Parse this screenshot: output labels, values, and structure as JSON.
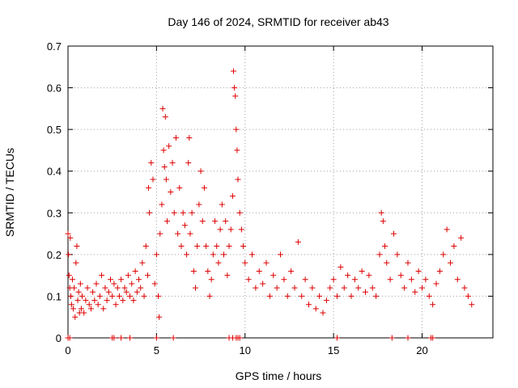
{
  "chart_data": {
    "type": "scatter",
    "title": "Day 146 of 2024, SRMTID for receiver ab43",
    "xlabel": "GPS time / hours",
    "ylabel": "SRMTID / TECUs",
    "xlim": [
      0,
      24
    ],
    "ylim": [
      0,
      0.7
    ],
    "xticks": [
      0,
      5,
      10,
      15,
      20
    ],
    "yticks": [
      0,
      0.1,
      0.2,
      0.3,
      0.4,
      0.5,
      0.6,
      0.7
    ],
    "grid": true,
    "marker": "+",
    "series_color": "#dd0000",
    "series": [
      {
        "name": "SRMTID",
        "points": [
          [
            0.0,
            0.25
          ],
          [
            0.03,
            0.2
          ],
          [
            0.06,
            0.15
          ],
          [
            0.1,
            0.12
          ],
          [
            0.13,
            0.24
          ],
          [
            0.16,
            0.1
          ],
          [
            0.2,
            0.08
          ],
          [
            0.25,
            0.14
          ],
          [
            0.3,
            0.07
          ],
          [
            0.35,
            0.12
          ],
          [
            0.4,
            0.05
          ],
          [
            0.45,
            0.18
          ],
          [
            0.5,
            0.22
          ],
          [
            0.55,
            0.09
          ],
          [
            0.6,
            0.11
          ],
          [
            0.65,
            0.06
          ],
          [
            0.7,
            0.13
          ],
          [
            0.75,
            0.07
          ],
          [
            0.8,
            0.1
          ],
          [
            0.9,
            0.06
          ],
          [
            1.0,
            0.09
          ],
          [
            1.1,
            0.12
          ],
          [
            1.2,
            0.08
          ],
          [
            1.3,
            0.07
          ],
          [
            1.4,
            0.11
          ],
          [
            1.5,
            0.09
          ],
          [
            1.6,
            0.13
          ],
          [
            1.7,
            0.08
          ],
          [
            1.8,
            0.1
          ],
          [
            1.9,
            0.15
          ],
          [
            2.0,
            0.07
          ],
          [
            2.1,
            0.12
          ],
          [
            2.2,
            0.09
          ],
          [
            2.3,
            0.11
          ],
          [
            2.4,
            0.14
          ],
          [
            2.5,
            0.1
          ],
          [
            2.6,
            0.13
          ],
          [
            2.7,
            0.08
          ],
          [
            2.8,
            0.12
          ],
          [
            2.9,
            0.1
          ],
          [
            3.0,
            0.14
          ],
          [
            3.1,
            0.09
          ],
          [
            3.2,
            0.12
          ],
          [
            3.3,
            0.11
          ],
          [
            3.4,
            0.15
          ],
          [
            3.5,
            0.1
          ],
          [
            3.6,
            0.13
          ],
          [
            3.7,
            0.09
          ],
          [
            3.8,
            0.16
          ],
          [
            3.9,
            0.11
          ],
          [
            4.0,
            0.14
          ],
          [
            4.1,
            0.12
          ],
          [
            4.2,
            0.18
          ],
          [
            4.3,
            0.1
          ],
          [
            4.4,
            0.22
          ],
          [
            4.5,
            0.15
          ],
          [
            4.55,
            0.36
          ],
          [
            4.6,
            0.3
          ],
          [
            4.7,
            0.42
          ],
          [
            4.8,
            0.38
          ],
          [
            4.9,
            0.13
          ],
          [
            5.0,
            0.2
          ],
          [
            5.1,
            0.1
          ],
          [
            5.15,
            0.05
          ],
          [
            5.2,
            0.25
          ],
          [
            5.3,
            0.32
          ],
          [
            5.35,
            0.55
          ],
          [
            5.4,
            0.45
          ],
          [
            5.45,
            0.41
          ],
          [
            5.5,
            0.53
          ],
          [
            5.55,
            0.38
          ],
          [
            5.6,
            0.28
          ],
          [
            5.7,
            0.46
          ],
          [
            5.8,
            0.35
          ],
          [
            5.9,
            0.42
          ],
          [
            6.0,
            0.3
          ],
          [
            6.1,
            0.48
          ],
          [
            6.2,
            0.25
          ],
          [
            6.3,
            0.36
          ],
          [
            6.4,
            0.22
          ],
          [
            6.5,
            0.3
          ],
          [
            6.6,
            0.27
          ],
          [
            6.7,
            0.2
          ],
          [
            6.8,
            0.42
          ],
          [
            6.85,
            0.48
          ],
          [
            6.9,
            0.25
          ],
          [
            7.0,
            0.3
          ],
          [
            7.1,
            0.16
          ],
          [
            7.2,
            0.12
          ],
          [
            7.3,
            0.22
          ],
          [
            7.4,
            0.32
          ],
          [
            7.5,
            0.4
          ],
          [
            7.6,
            0.28
          ],
          [
            7.7,
            0.36
          ],
          [
            7.8,
            0.22
          ],
          [
            7.9,
            0.16
          ],
          [
            8.0,
            0.1
          ],
          [
            8.1,
            0.14
          ],
          [
            8.2,
            0.2
          ],
          [
            8.3,
            0.28
          ],
          [
            8.4,
            0.22
          ],
          [
            8.5,
            0.18
          ],
          [
            8.6,
            0.26
          ],
          [
            8.7,
            0.32
          ],
          [
            8.8,
            0.2
          ],
          [
            8.9,
            0.28
          ],
          [
            9.0,
            0.15
          ],
          [
            9.1,
            0.22
          ],
          [
            9.2,
            0.26
          ],
          [
            9.3,
            0.34
          ],
          [
            9.35,
            0.64
          ],
          [
            9.4,
            0.6
          ],
          [
            9.45,
            0.58
          ],
          [
            9.5,
            0.5
          ],
          [
            9.55,
            0.45
          ],
          [
            9.6,
            0.38
          ],
          [
            9.7,
            0.3
          ],
          [
            9.8,
            0.26
          ],
          [
            9.9,
            0.22
          ],
          [
            10.0,
            0.18
          ],
          [
            10.2,
            0.14
          ],
          [
            10.4,
            0.2
          ],
          [
            10.6,
            0.12
          ],
          [
            10.8,
            0.16
          ],
          [
            11.0,
            0.13
          ],
          [
            11.2,
            0.18
          ],
          [
            11.4,
            0.1
          ],
          [
            11.6,
            0.15
          ],
          [
            11.8,
            0.12
          ],
          [
            12.0,
            0.2
          ],
          [
            12.2,
            0.14
          ],
          [
            12.4,
            0.1
          ],
          [
            12.6,
            0.16
          ],
          [
            12.8,
            0.12
          ],
          [
            13.0,
            0.23
          ],
          [
            13.2,
            0.1
          ],
          [
            13.4,
            0.14
          ],
          [
            13.6,
            0.08
          ],
          [
            13.8,
            0.12
          ],
          [
            14.0,
            0.07
          ],
          [
            14.2,
            0.1
          ],
          [
            14.4,
            0.06
          ],
          [
            14.6,
            0.09
          ],
          [
            14.8,
            0.12
          ],
          [
            15.0,
            0.14
          ],
          [
            15.2,
            0.1
          ],
          [
            15.4,
            0.17
          ],
          [
            15.6,
            0.12
          ],
          [
            15.8,
            0.15
          ],
          [
            16.0,
            0.1
          ],
          [
            16.2,
            0.14
          ],
          [
            16.4,
            0.12
          ],
          [
            16.6,
            0.16
          ],
          [
            16.8,
            0.11
          ],
          [
            17.0,
            0.15
          ],
          [
            17.2,
            0.12
          ],
          [
            17.4,
            0.1
          ],
          [
            17.6,
            0.2
          ],
          [
            17.7,
            0.3
          ],
          [
            17.8,
            0.28
          ],
          [
            17.9,
            0.22
          ],
          [
            18.0,
            0.18
          ],
          [
            18.2,
            0.14
          ],
          [
            18.4,
            0.25
          ],
          [
            18.6,
            0.2
          ],
          [
            18.8,
            0.15
          ],
          [
            19.0,
            0.12
          ],
          [
            19.2,
            0.18
          ],
          [
            19.4,
            0.14
          ],
          [
            19.6,
            0.11
          ],
          [
            19.8,
            0.16
          ],
          [
            20.0,
            0.12
          ],
          [
            20.2,
            0.14
          ],
          [
            20.4,
            0.1
          ],
          [
            20.6,
            0.08
          ],
          [
            20.8,
            0.13
          ],
          [
            21.0,
            0.16
          ],
          [
            21.2,
            0.2
          ],
          [
            21.4,
            0.26
          ],
          [
            21.6,
            0.18
          ],
          [
            21.8,
            0.22
          ],
          [
            22.0,
            0.14
          ],
          [
            22.2,
            0.24
          ],
          [
            22.4,
            0.12
          ],
          [
            22.6,
            0.1
          ],
          [
            22.8,
            0.08
          ]
        ]
      }
    ],
    "zero_markers_x": [
      0.0,
      0.1,
      2.5,
      2.6,
      3.0,
      3.5,
      5.0,
      5.95,
      9.1,
      9.3,
      9.5,
      9.6,
      9.7,
      15.2,
      18.3,
      19.2,
      20.5,
      20.6
    ]
  }
}
